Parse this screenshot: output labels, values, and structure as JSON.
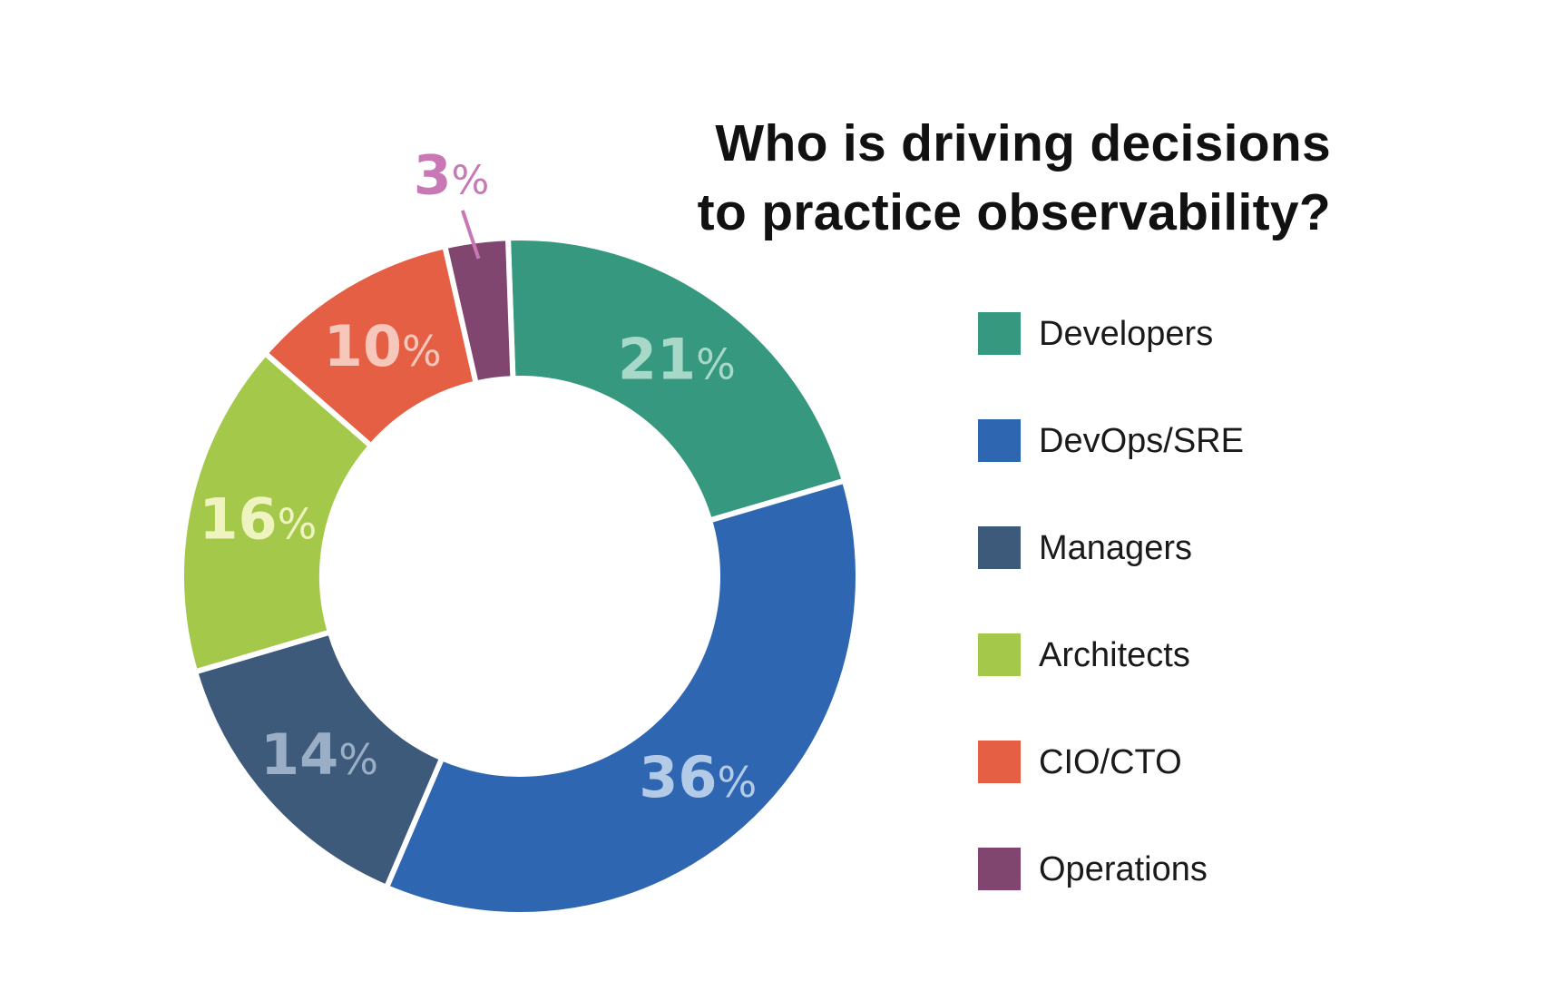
{
  "chart_data": {
    "type": "pie",
    "variant": "donut",
    "title_lines": [
      "Who is driving decisions",
      "to practice observability?"
    ],
    "start_angle_deg": -2,
    "direction": "clockwise",
    "legend_position": "right",
    "slices": [
      {
        "label": "Developers",
        "value": 21,
        "number_text": "21",
        "suffix": "%",
        "color": "#36987f",
        "label_color": "#a7d8c8"
      },
      {
        "label": "DevOps/SRE",
        "value": 36,
        "number_text": "36",
        "suffix": "%",
        "color": "#2f66b1",
        "label_color": "#b4cbe7"
      },
      {
        "label": "Managers",
        "value": 14,
        "number_text": "14",
        "suffix": "%",
        "color": "#3d5a7a",
        "label_color": "#9aafc6"
      },
      {
        "label": "Architects",
        "value": 16,
        "number_text": "16",
        "suffix": "%",
        "color": "#a4c94a",
        "label_color": "#eef3bf"
      },
      {
        "label": "CIO/CTO",
        "value": 10,
        "number_text": "10",
        "suffix": "%",
        "color": "#e45f44",
        "label_color": "#f8c7bb"
      },
      {
        "label": "Operations",
        "value": 3,
        "number_text": "3",
        "suffix": "%",
        "color": "#80466f",
        "label_color": "#c878b4",
        "callout": true
      }
    ]
  }
}
